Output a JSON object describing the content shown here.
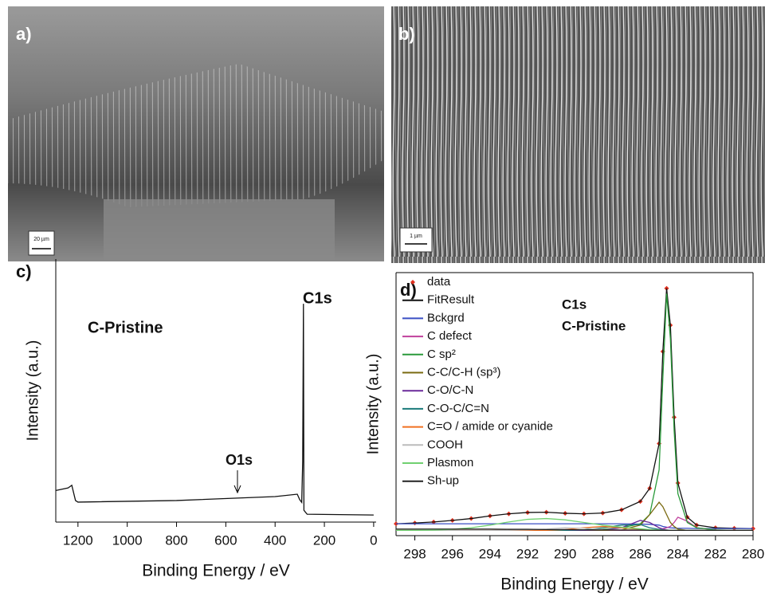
{
  "panels": [
    {
      "label": "a)",
      "scale_bar": "20 µm"
    },
    {
      "label": "b)",
      "scale_bar": "1 µm"
    }
  ],
  "chart_data": [
    {
      "type": "line",
      "panel_label": "c)",
      "x_label": "Binding Energy / eV",
      "y_label": "Intensity (a.u.)",
      "annotations": [
        "C-Pristine",
        "C1s",
        "O1s"
      ],
      "xlim": [
        1290,
        -10
      ],
      "ylim": [
        0,
        100
      ],
      "xticks": [
        1200,
        1000,
        800,
        600,
        400,
        200,
        0
      ],
      "series": [
        {
          "name": "C-Pristine",
          "color": "#111111",
          "x": [
            1290,
            1240,
            1225,
            1210,
            1200,
            800,
            400,
            310,
            300,
            292,
            288,
            285,
            283,
            270,
            0
          ],
          "values": [
            12,
            13,
            14,
            8.2,
            7.6,
            8.2,
            9.7,
            10.6,
            8.5,
            7.5,
            23,
            83,
            4.5,
            3,
            2.7
          ]
        }
      ]
    },
    {
      "type": "line",
      "panel_label": "d)",
      "x_label": "Binding Energy / eV",
      "y_label": "Intensity (a.u.)",
      "annotations": [
        "C1s",
        "C-Pristine"
      ],
      "xlim": [
        299,
        280
      ],
      "ylim": [
        0,
        100
      ],
      "xticks": [
        298,
        296,
        294,
        292,
        290,
        288,
        286,
        284,
        282,
        280
      ],
      "x": [
        299,
        298,
        297,
        296,
        295,
        294,
        293,
        292,
        291,
        290,
        289,
        288,
        287,
        286,
        285.5,
        285,
        284.8,
        284.6,
        284.4,
        284.2,
        284,
        283.5,
        283,
        282,
        281,
        280
      ],
      "series": [
        {
          "name": "data",
          "color": "#e0301e",
          "mode": "markers",
          "values": [
            4.5,
            4.8,
            5.2,
            5.8,
            6.5,
            7.5,
            8.3,
            8.8,
            8.9,
            8.5,
            8.3,
            8.6,
            9.8,
            13,
            18,
            35,
            70,
            94,
            80,
            45,
            20,
            7,
            4,
            3,
            2.8,
            2.7
          ]
        },
        {
          "name": "FitResult",
          "color": "#111111",
          "values": [
            4.5,
            4.8,
            5.2,
            5.8,
            6.5,
            7.5,
            8.3,
            8.8,
            8.9,
            8.5,
            8.3,
            8.6,
            9.8,
            13,
            18,
            35,
            70,
            94,
            80,
            45,
            20,
            7,
            4,
            3,
            2.8,
            2.7
          ]
        },
        {
          "name": "Bckgrd",
          "color": "#3a4fc4",
          "values": [
            4.5,
            4.5,
            4.5,
            4.5,
            4.5,
            4.5,
            4.5,
            4.5,
            4.5,
            4.5,
            4.5,
            4.5,
            4.5,
            4.4,
            4.3,
            4,
            3.5,
            3.2,
            3,
            2.9,
            2.8,
            2.8,
            2.7,
            2.7,
            2.7,
            2.7
          ]
        },
        {
          "name": "C defect",
          "color": "#c0409c",
          "values": [
            2,
            2,
            2,
            2,
            2,
            2,
            2,
            2,
            2,
            2,
            2,
            2,
            2,
            2,
            2,
            2.2,
            2.6,
            3,
            3.5,
            5,
            7,
            5.5,
            3,
            2.1,
            2,
            2
          ]
        },
        {
          "name": "C sp²",
          "color": "#2a9a3a",
          "values": [
            2,
            2,
            2,
            2,
            2,
            2,
            2,
            2,
            2,
            2,
            2.2,
            2.5,
            3,
            4.5,
            8,
            25,
            60,
            92,
            75,
            40,
            16,
            5,
            3,
            2.2,
            2,
            2
          ]
        },
        {
          "name": "C-C/C-H (sp³)",
          "color": "#7a6a10",
          "values": [
            2,
            2,
            2,
            2,
            2,
            2,
            2,
            2,
            2,
            2,
            2,
            2,
            2.2,
            4,
            8,
            12.7,
            11,
            8,
            5,
            3.5,
            2.5,
            2,
            2,
            2,
            2,
            2
          ]
        },
        {
          "name": "C-O/C-N",
          "color": "#6a2a9a",
          "values": [
            2,
            2,
            2,
            2,
            2,
            2,
            2,
            2,
            2,
            2,
            2,
            2.2,
            3,
            5.8,
            5,
            3,
            2.5,
            2.2,
            2,
            2,
            2,
            2,
            2,
            2,
            2,
            2
          ]
        },
        {
          "name": "C-O-C/C=N",
          "color": "#1a7a7a",
          "values": [
            2,
            2,
            2,
            2,
            2,
            2,
            2,
            2,
            2,
            2,
            2.2,
            3,
            4,
            4.2,
            3,
            2.4,
            2.2,
            2.1,
            2,
            2,
            2,
            2,
            2,
            2,
            2,
            2
          ]
        },
        {
          "name": "C=O / amide or cyanide",
          "color": "#f07020",
          "values": [
            2,
            2,
            2,
            2,
            2,
            2,
            2,
            2,
            2,
            2.3,
            3,
            3.5,
            3,
            2.4,
            2.2,
            2.1,
            2,
            2,
            2,
            2,
            2,
            2,
            2,
            2,
            2,
            2
          ]
        },
        {
          "name": "COOH",
          "color": "#bbbbbb",
          "values": [
            2,
            2,
            2,
            2,
            2,
            2,
            2,
            2.2,
            2.5,
            3,
            2.8,
            2.4,
            2.2,
            2.1,
            2,
            2,
            2,
            2,
            2,
            2,
            2,
            2,
            2,
            2,
            2,
            2
          ]
        },
        {
          "name": "Plasmon",
          "color": "#70d070",
          "values": [
            2,
            2,
            2.1,
            2.4,
            3,
            4,
            5.2,
            6.2,
            6.5,
            6,
            5,
            4,
            3.2,
            2.6,
            2.3,
            2.1,
            2,
            2,
            2,
            2,
            2,
            2,
            2,
            2,
            2,
            2
          ]
        },
        {
          "name": "Sh-up",
          "color": "#222222",
          "values": [
            2.5,
            2.5,
            2.5,
            2.5,
            2.5,
            2.5,
            2.4,
            2.4,
            2.3,
            2.3,
            2.2,
            2.2,
            2.1,
            2.1,
            2,
            2,
            2,
            2,
            2,
            2,
            2,
            2,
            2,
            2,
            2,
            2
          ]
        }
      ]
    }
  ]
}
